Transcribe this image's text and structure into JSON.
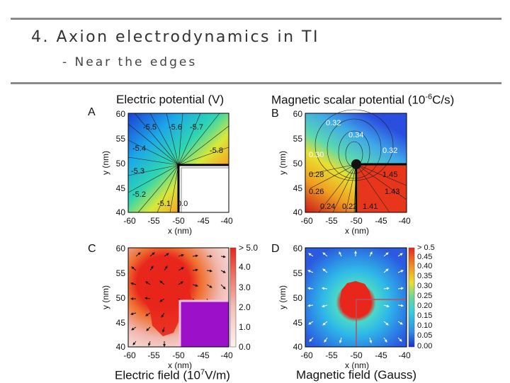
{
  "slide": {
    "title": "4. Axion electrodynamics in TI",
    "subtitle": "- Near the edges"
  },
  "captions": {
    "electric_potential": "Electric potential (V)",
    "magnetic_potential_prefix": "Magnetic scalar potential (10",
    "magnetic_potential_exp": "-6",
    "magnetic_potential_suffix": "C/s)",
    "electric_field_prefix": "Electric field (10",
    "electric_field_exp": "7",
    "electric_field_suffix": "V/m)",
    "magnetic_field": "Magnetic field (Gauss)"
  },
  "panels": {
    "A": "A",
    "B": "B",
    "C": "C",
    "D": "D",
    "x_label": "x (nm)",
    "y_label": "y (nm)"
  },
  "chart_data": [
    {
      "type": "heatmap",
      "panel": "A",
      "xlabel": "x (nm)",
      "ylabel": "y (nm)",
      "xlim": [
        -60,
        -40
      ],
      "ylim": [
        40,
        60
      ],
      "xticks": [
        "-60",
        "-55",
        "-50",
        "-45",
        "-40"
      ],
      "yticks": [
        "40",
        "45",
        "50",
        "55",
        "60"
      ],
      "contour_labels": [
        "-5.5",
        "-5.6",
        "-5.7",
        "-5.4",
        "-5.8",
        "-5.3",
        "-5.2",
        "-5.1",
        "0.0"
      ]
    },
    {
      "type": "heatmap",
      "panel": "B",
      "xlabel": "x (nm)",
      "ylabel": "y (nm)",
      "xlim": [
        -60,
        -40
      ],
      "ylim": [
        40,
        60
      ],
      "xticks": [
        "-60",
        "-55",
        "-50",
        "-45",
        "-40"
      ],
      "yticks": [
        "40",
        "45",
        "50",
        "55",
        "60"
      ],
      "contour_labels": [
        "0.32",
        "0.34",
        "0.32",
        "0.30",
        "0.28",
        "1.45",
        "0.26",
        "1.43",
        "0.24",
        "0.22",
        "1.41"
      ]
    },
    {
      "type": "heatmap",
      "panel": "C",
      "xlabel": "x (nm)",
      "ylabel": "y (nm)",
      "xlim": [
        -60,
        -40
      ],
      "ylim": [
        40,
        60
      ],
      "xticks": [
        "-60",
        "-55",
        "-50",
        "-45",
        "-40"
      ],
      "yticks": [
        "40",
        "45",
        "50",
        "55",
        "60"
      ],
      "colorbar": [
        "> 5.0",
        "4.0",
        "3.0",
        "2.0",
        "1.0",
        "0.0"
      ]
    },
    {
      "type": "heatmap",
      "panel": "D",
      "xlabel": "x (nm)",
      "ylabel": "y (nm)",
      "xlim": [
        -60,
        -40
      ],
      "ylim": [
        40,
        60
      ],
      "xticks": [
        "-60",
        "-55",
        "-50",
        "-45",
        "-40"
      ],
      "yticks": [
        "40",
        "45",
        "50",
        "55",
        "60"
      ],
      "colorbar": [
        "> 0.5",
        "0.45",
        "0.40",
        "0.35",
        "0.30",
        "0.25",
        "0.20",
        "0.15",
        "0.10",
        "0.05",
        "0.00"
      ]
    }
  ]
}
